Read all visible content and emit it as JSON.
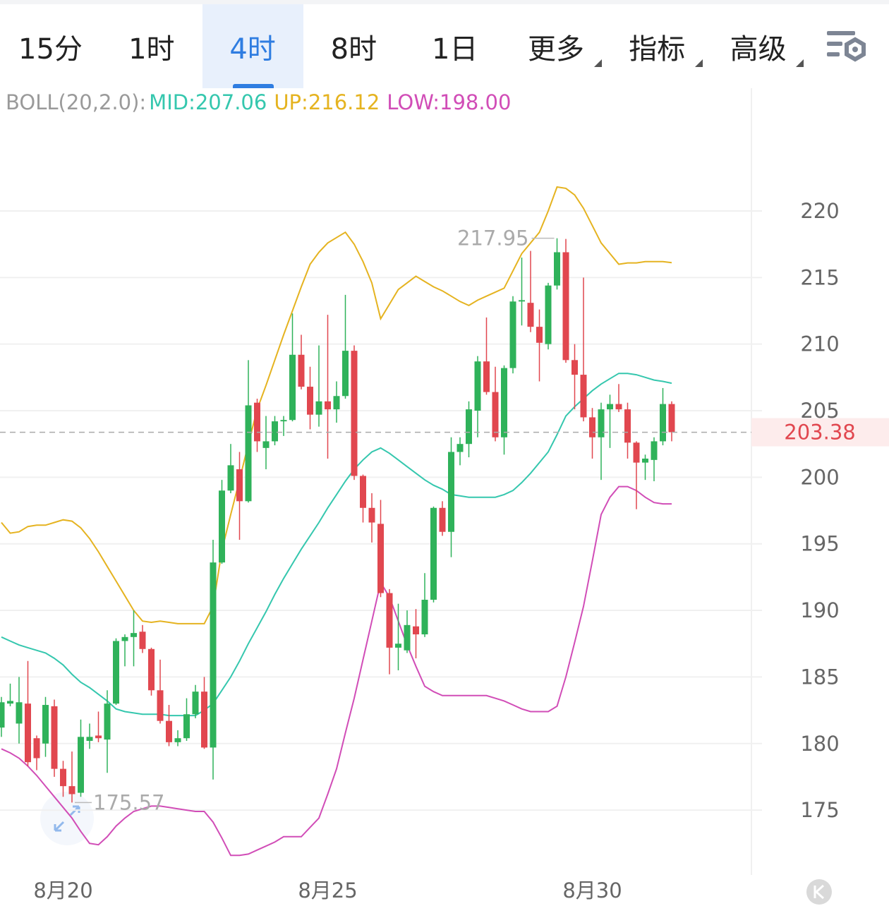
{
  "tabs": {
    "items": [
      "15分",
      "1时",
      "4时",
      "8时",
      "1日",
      "更多",
      "指标",
      "高级"
    ],
    "menus": [
      false,
      false,
      false,
      false,
      false,
      true,
      true,
      true
    ],
    "selected": 2
  },
  "chart_data": {
    "type": "candlestick",
    "indicator": "BOLL(20,2.0):",
    "categories": [
      null,
      null,
      null,
      null,
      null,
      null,
      null,
      "8月20",
      null,
      null,
      null,
      null,
      null,
      null,
      null,
      null,
      null,
      null,
      null,
      null,
      null,
      null,
      null,
      null,
      null,
      null,
      null,
      null,
      null,
      null,
      null,
      null,
      null,
      null,
      null,
      null,
      null,
      "8月25",
      null,
      null,
      null,
      null,
      null,
      null,
      null,
      null,
      null,
      null,
      null,
      null,
      null,
      null,
      null,
      null,
      null,
      null,
      null,
      null,
      null,
      null,
      null,
      null,
      null,
      null,
      null,
      null,
      null,
      "8月30",
      null,
      null,
      null,
      null,
      null,
      null,
      null,
      null,
      null
    ],
    "open": [
      181.2,
      183,
      181.5,
      183,
      180.4,
      180,
      182.8,
      178.1,
      176.8,
      176.3,
      180.2,
      180.6,
      180.3,
      183,
      187.7,
      188,
      188.4,
      187.1,
      184,
      181.7,
      180.1,
      180.4,
      182.2,
      183.9,
      179.7,
      193.6,
      199,
      200.6,
      198.2,
      205.6,
      202.2,
      202.7,
      204.2,
      204.3,
      209.2,
      206.8,
      204.7,
      205.7,
      205.1,
      206.1,
      209.5,
      200.1,
      197.7,
      196.5,
      191.3,
      187.2,
      187,
      188.8,
      188.2,
      190.8,
      197.7,
      195.9,
      201.9,
      202.5,
      205,
      208.7,
      206.4,
      203,
      208.2,
      213.2,
      213.1,
      211.3,
      210,
      214.4,
      216.9,
      208.8,
      207.7,
      204.5,
      203,
      205.1,
      205.5,
      205.1,
      202.6,
      201.1,
      201.3,
      202.7,
      205.5
    ],
    "high": [
      183.5,
      184.5,
      185,
      186.2,
      180.6,
      183.5,
      183.3,
      178.7,
      179.4,
      181.8,
      181.5,
      182.4,
      184,
      187.9,
      188.2,
      190,
      188.9,
      187.2,
      186.3,
      182.9,
      181,
      183.4,
      184.4,
      185,
      195.3,
      199.8,
      202.5,
      201.9,
      208.8,
      205.9,
      204.6,
      204.6,
      204.6,
      212.3,
      210.7,
      208.3,
      209.9,
      212.2,
      207.2,
      213.7,
      209.9,
      200.2,
      198.8,
      198.3,
      191.6,
      190.5,
      190,
      190.1,
      192.8,
      197.8,
      198.2,
      203,
      203,
      205.7,
      209.1,
      212,
      208.3,
      208.4,
      213.6,
      216.5,
      217,
      212.6,
      214.6,
      217.95,
      217.9,
      210,
      215,
      205.2,
      205.6,
      206.2,
      207,
      205.6,
      202.7,
      201.7,
      203,
      206.7,
      205.7
    ],
    "low": [
      180.5,
      182.8,
      180,
      178.3,
      178,
      179,
      177.5,
      176,
      175.57,
      176,
      179.6,
      180.1,
      177.8,
      182.9,
      185.8,
      185.8,
      186.8,
      183.6,
      181.5,
      179.8,
      179.8,
      180.2,
      181.9,
      179.6,
      177.3,
      193.5,
      198.8,
      195.3,
      198.1,
      201.9,
      200.6,
      202.4,
      203.1,
      204.2,
      206.6,
      203.6,
      203.8,
      201.4,
      204.1,
      205.9,
      199.8,
      196.6,
      195.1,
      191,
      185.2,
      185.5,
      186.8,
      186.4,
      188,
      190.6,
      195.6,
      194,
      200.9,
      201.5,
      203,
      206.2,
      202.7,
      201.7,
      207.8,
      211.4,
      210.9,
      207.2,
      209.6,
      214.1,
      208.6,
      205.1,
      204.2,
      201.4,
      199.8,
      202.2,
      204.9,
      201.4,
      197.6,
      199.8,
      199.7,
      202.4,
      202.7
    ],
    "close": [
      183.1,
      183.2,
      183.1,
      178.6,
      178.9,
      182.9,
      178.1,
      176.8,
      176.2,
      180.5,
      180.5,
      180.4,
      183,
      187.7,
      188,
      188.3,
      187.1,
      184,
      181.7,
      180.1,
      180.4,
      182.2,
      183.9,
      179.7,
      193.6,
      199,
      200.9,
      198.2,
      205.4,
      202.7,
      202.7,
      204.2,
      204.3,
      209.2,
      206.8,
      204.7,
      205.7,
      205.1,
      206.1,
      209.5,
      200.1,
      197.7,
      196.6,
      191.3,
      187.2,
      187.5,
      188.9,
      188.2,
      190.8,
      197.7,
      195.9,
      201.9,
      202.5,
      205.1,
      208.7,
      206.4,
      203,
      208.2,
      213.2,
      213.3,
      211.3,
      210.1,
      214.4,
      216.9,
      208.8,
      207.7,
      204.5,
      203,
      205.1,
      205.5,
      205.1,
      202.6,
      201.1,
      201.4,
      202.7,
      205.5,
      203.38
    ],
    "up_color": "#2fb25a",
    "down_color": "#e1474f",
    "bands": [
      {
        "label": "MID:207.06",
        "color": "#35c7ae",
        "values": [
          188.0,
          187.7,
          187.4,
          187.2,
          187.0,
          186.8,
          186.4,
          185.9,
          185.2,
          184.6,
          184.2,
          183.7,
          183.2,
          182.6,
          182.4,
          182.3,
          182.2,
          182.2,
          182.2,
          182.1,
          182.1,
          182.1,
          182.1,
          182.5,
          183.0,
          184.0,
          185.0,
          186.2,
          187.5,
          188.7,
          189.9,
          191.2,
          192.4,
          193.5,
          194.6,
          195.6,
          196.6,
          197.7,
          198.7,
          199.7,
          200.6,
          201.3,
          201.9,
          202.2,
          201.8,
          201.3,
          200.8,
          200.3,
          199.8,
          199.4,
          199.1,
          198.7,
          198.6,
          198.5,
          198.5,
          198.5,
          198.5,
          198.7,
          199.0,
          199.6,
          200.3,
          201.1,
          201.9,
          203.2,
          204.6,
          205.3,
          205.9,
          206.5,
          207.0,
          207.4,
          207.8,
          207.8,
          207.7,
          207.5,
          207.3,
          207.2,
          207.06
        ]
      },
      {
        "label": "UP:216.12",
        "color": "#e5b320",
        "values": [
          196.6,
          195.8,
          195.9,
          196.3,
          196.4,
          196.4,
          196.6,
          196.8,
          196.7,
          196.2,
          195.4,
          194.4,
          193.3,
          192.2,
          191.1,
          190.0,
          189.2,
          189.1,
          189.2,
          189.1,
          189.0,
          189.0,
          189.0,
          189.0,
          190.3,
          194.5,
          197.2,
          199.8,
          202.5,
          205.1,
          206.9,
          208.8,
          210.7,
          212.5,
          214.3,
          216.0,
          216.9,
          217.6,
          218.0,
          218.4,
          217.5,
          216.2,
          214.6,
          211.9,
          213.0,
          214.1,
          214.6,
          215.1,
          214.7,
          214.3,
          214.0,
          213.6,
          213.2,
          212.9,
          213.3,
          213.6,
          213.9,
          214.2,
          215.5,
          216.8,
          217.6,
          218.4,
          220.0,
          221.8,
          221.7,
          221.2,
          220.2,
          218.9,
          217.6,
          216.8,
          216.0,
          216.1,
          216.1,
          216.2,
          216.2,
          216.2,
          216.12
        ]
      },
      {
        "label": "LOW:198.00",
        "color": "#d14db7",
        "values": [
          179.6,
          179.3,
          178.9,
          178.3,
          177.6,
          176.8,
          176.0,
          175.2,
          174.4,
          173.4,
          172.5,
          172.4,
          173.0,
          173.8,
          174.4,
          174.9,
          175.1,
          175.3,
          175.3,
          175.2,
          175.1,
          175.0,
          174.9,
          174.9,
          174.1,
          172.9,
          171.6,
          171.6,
          171.7,
          172.0,
          172.3,
          172.6,
          173.0,
          173.0,
          173.0,
          173.7,
          174.4,
          176.2,
          178.1,
          180.8,
          183.4,
          186.3,
          189.2,
          192.1,
          191.0,
          189.2,
          187.4,
          185.8,
          184.3,
          183.9,
          183.6,
          183.6,
          183.6,
          183.6,
          183.6,
          183.6,
          183.4,
          183.2,
          182.9,
          182.6,
          182.4,
          182.4,
          182.4,
          182.8,
          185.0,
          187.6,
          190.3,
          193.7,
          197.2,
          198.5,
          199.3,
          199.3,
          199.0,
          198.5,
          198.1,
          198.0,
          198.0
        ]
      }
    ],
    "ylim": [
      170.13,
      227.1
    ],
    "yticks": [
      175,
      180,
      185,
      190,
      195,
      200,
      205,
      210,
      215,
      220
    ],
    "grid": true
  }
}
